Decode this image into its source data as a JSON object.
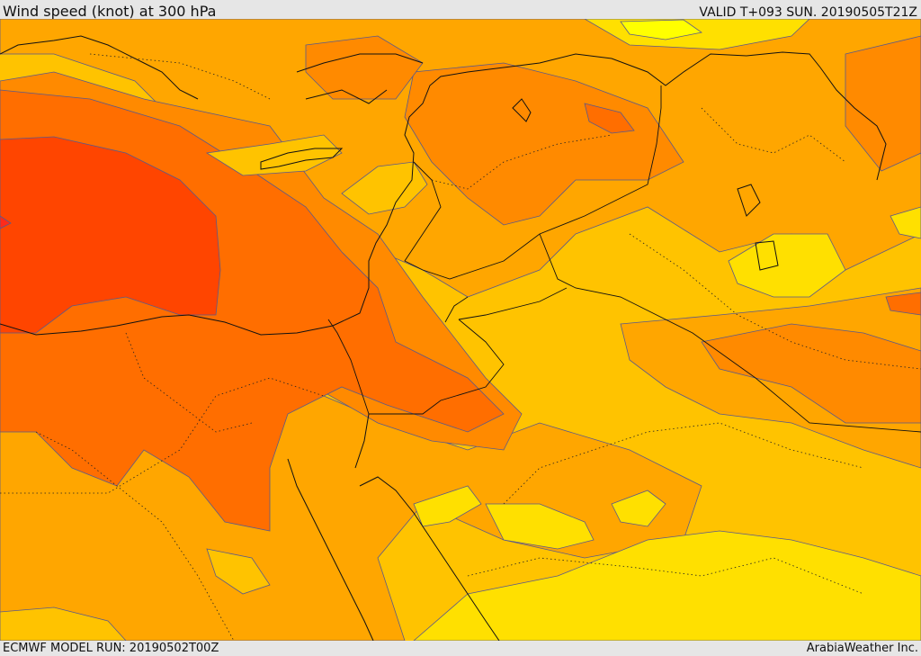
{
  "header": {
    "title": "Wind speed (knot) at 300 hPa",
    "valid": "VALID T+093 SUN. 20190505T21Z"
  },
  "footer": {
    "model_run": "ECMWF MODEL RUN: 20190502T00Z",
    "credit": "ArabiaWeather Inc."
  },
  "map": {
    "field": "wind speed at 300 hPa",
    "colors": {
      "level_1": "#ffff00",
      "level_2": "#ffe000",
      "level_3": "#ffc300",
      "level_4": "#ffa600",
      "level_5": "#ff8a00",
      "level_6": "#ff6e00",
      "level_7": "#ff4500",
      "level_8": "#ff2a1a",
      "contour": "#5a5a8a",
      "coastline": "#111111",
      "border": "#111111"
    }
  }
}
